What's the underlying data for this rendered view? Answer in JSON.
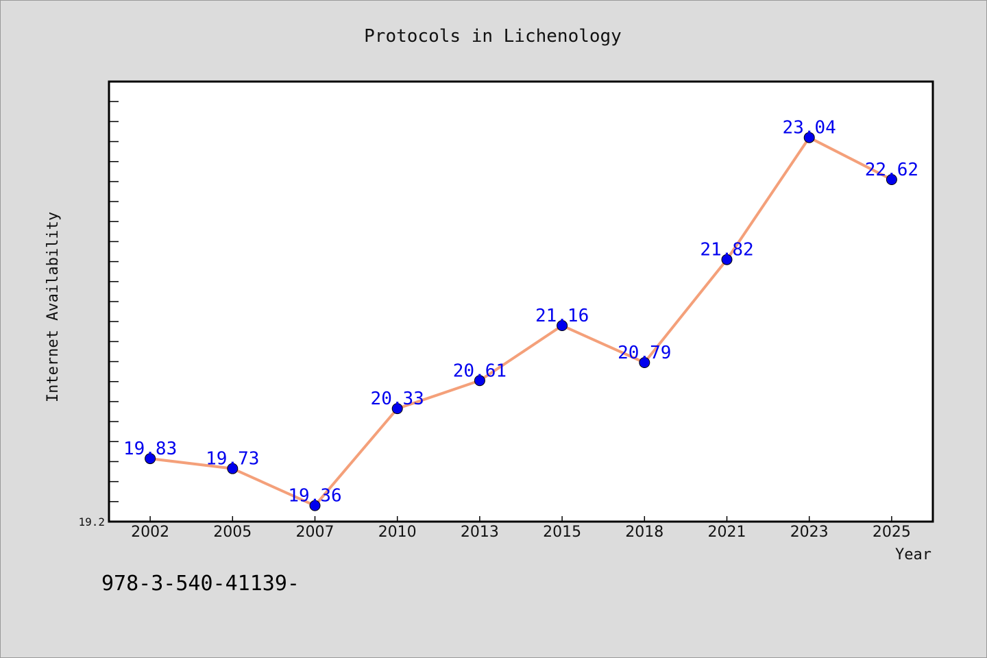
{
  "chart_data": {
    "type": "line",
    "title": "Protocols in Lichenology",
    "xlabel": "Year",
    "ylabel": "Internet Availability",
    "categories": [
      "2002",
      "2005",
      "2007",
      "2010",
      "2013",
      "2015",
      "2018",
      "2021",
      "2023",
      "2025"
    ],
    "series": [
      {
        "values": [
          19.83,
          19.73,
          19.36,
          20.33,
          20.61,
          21.16,
          20.79,
          21.82,
          23.04,
          22.62
        ]
      }
    ],
    "y_tick_labels": [
      "19.2"
    ],
    "ylim": [
      19.2,
      23.6
    ],
    "grid": false,
    "line_color": "#f4a07a",
    "marker_color": "#0000ee",
    "label_color": "#0000ee"
  },
  "footer": {
    "isbn": "978-3-540-41139-"
  }
}
